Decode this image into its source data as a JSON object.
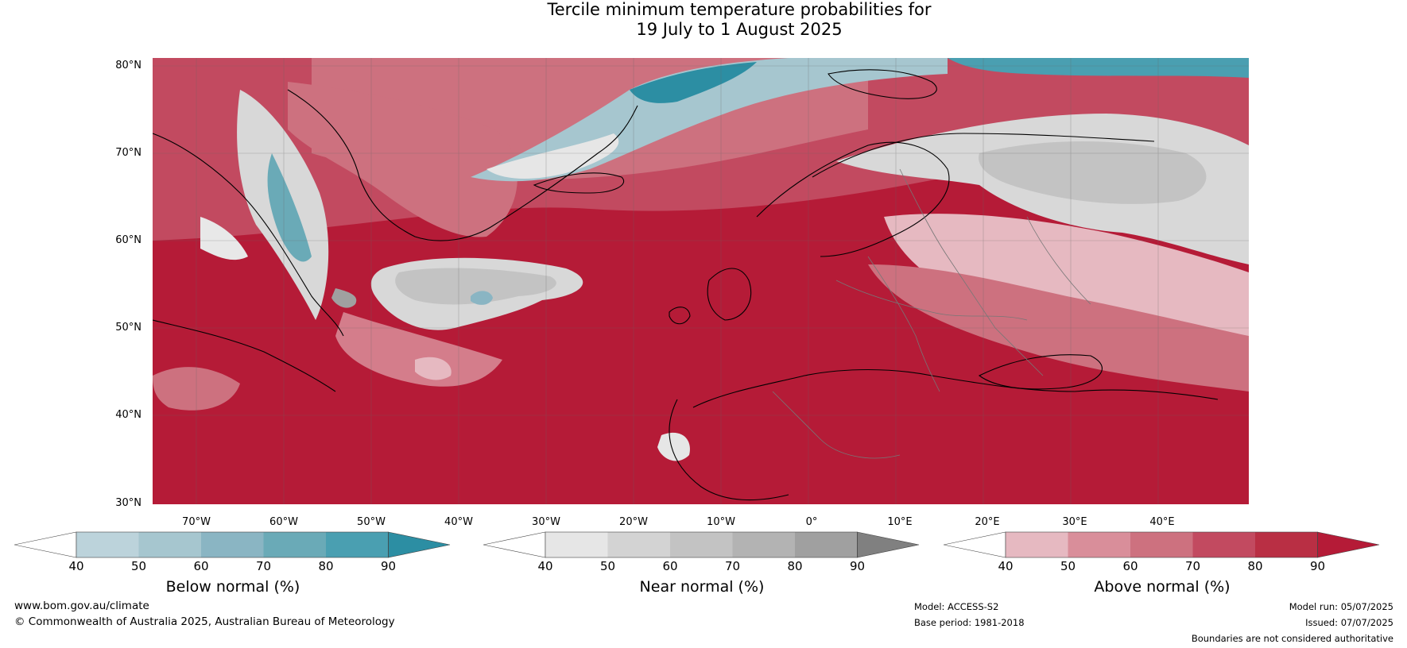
{
  "title_line1": "Tercile minimum temperature probabilities for",
  "title_line2": "19 July to 1 August 2025",
  "lat_labels": [
    "80°N",
    "70°N",
    "60°N",
    "50°N",
    "40°N",
    "30°N"
  ],
  "lon_labels": [
    "70°W",
    "60°W",
    "50°W",
    "40°W",
    "30°W",
    "20°W",
    "10°W",
    "0°",
    "10°E",
    "20°E",
    "30°E",
    "40°E"
  ],
  "colorbars": [
    {
      "title": "Below normal (%)",
      "ticks": [
        "40",
        "50",
        "60",
        "70",
        "80",
        "90"
      ],
      "colors": [
        "#ffffff",
        "#bcd3db",
        "#a6c6cf",
        "#8ab5c3",
        "#6aaab7",
        "#4a9fb1",
        "#2c8ea3"
      ]
    },
    {
      "title": "Near normal (%)",
      "ticks": [
        "40",
        "50",
        "60",
        "70",
        "80",
        "90"
      ],
      "colors": [
        "#ffffff",
        "#e6e6e6",
        "#d3d3d3",
        "#c3c3c3",
        "#b3b3b3",
        "#a0a0a0",
        "#808080"
      ]
    },
    {
      "title": "Above normal (%)",
      "ticks": [
        "40",
        "50",
        "60",
        "70",
        "80",
        "90"
      ],
      "colors": [
        "#ffffff",
        "#e6b9c1",
        "#d98e9a",
        "#cd717f",
        "#c24a60",
        "#b92f44",
        "#b51b37"
      ]
    }
  ],
  "footer": {
    "website": "www.bom.gov.au/climate",
    "copyright": "© Commonwealth of Australia 2025, Australian Bureau of Meteorology",
    "model": "Model: ACCESS-S2",
    "base_period": "Base period: 1981-2018",
    "model_run": "Model run: 05/07/2025",
    "issued": "Issued: 07/07/2025",
    "boundaries": "Boundaries are not considered authoritative"
  },
  "colors": {
    "above_deep": "#b51b37",
    "above_mid": "#cd717f",
    "above_light": "#e6b9c1",
    "near": "#d8d8d8",
    "below": "#4a9fb1",
    "below_light": "#a6c6cf"
  }
}
